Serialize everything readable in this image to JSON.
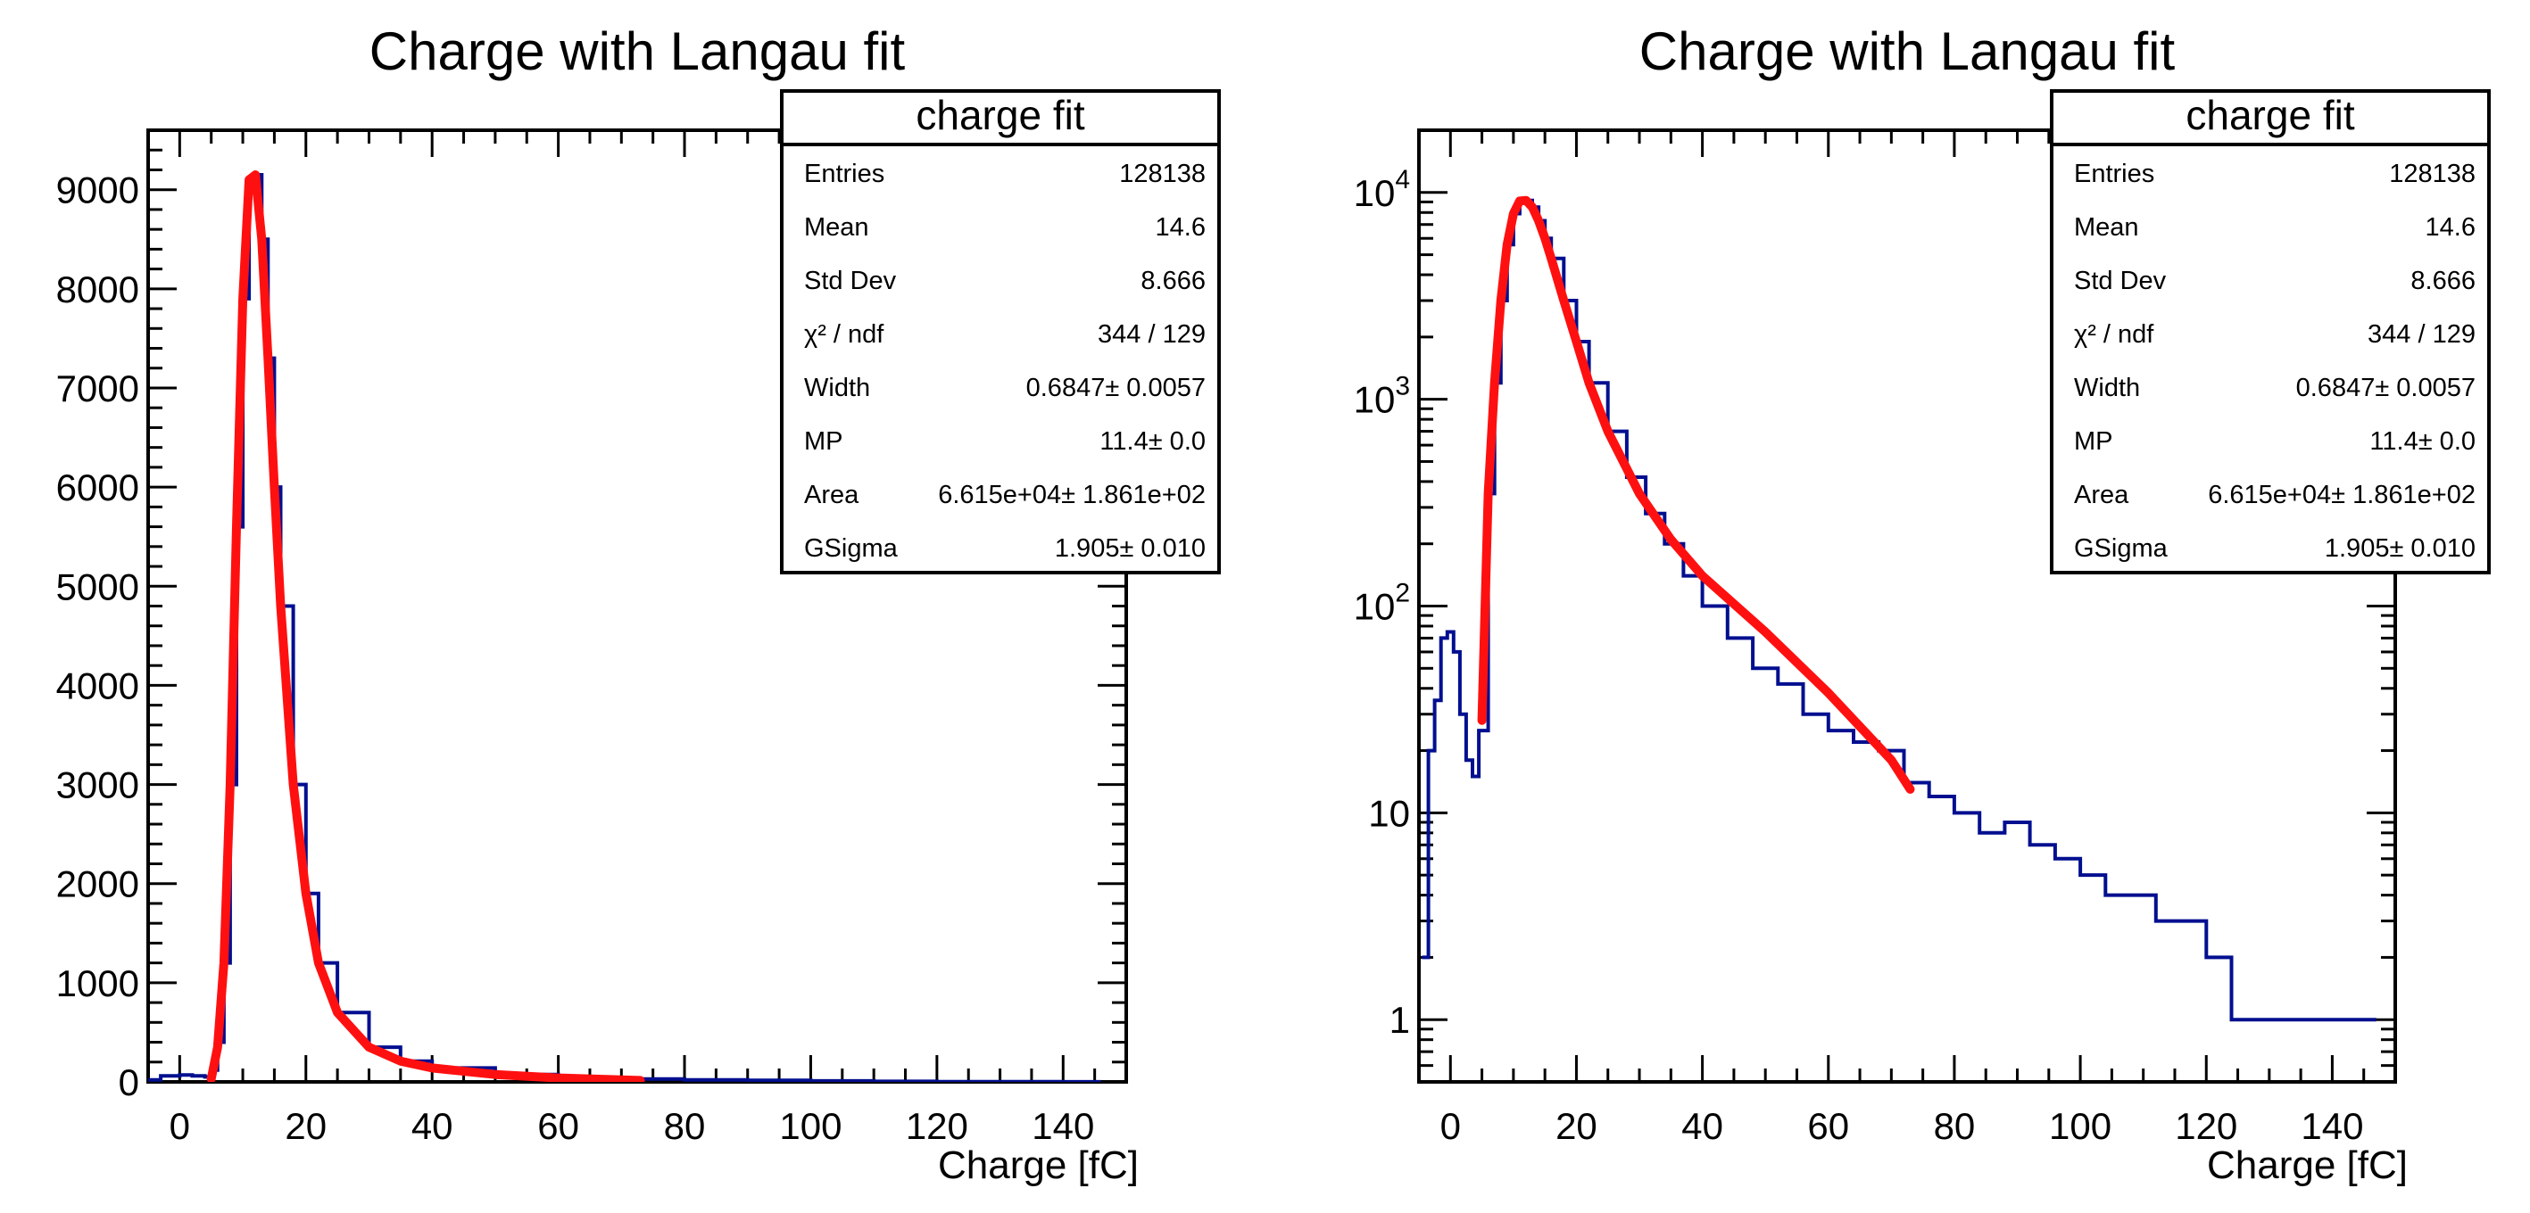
{
  "colors": {
    "histogram": "#000f8f",
    "fit": "#ff1010",
    "frame": "#000000"
  },
  "stats_box": {
    "title": "charge fit",
    "rows": [
      {
        "label": "Entries",
        "value": "128138"
      },
      {
        "label": "Mean",
        "value": "14.6"
      },
      {
        "label": "Std Dev",
        "value": "8.666"
      },
      {
        "label": "χ² / ndf",
        "value": "344 / 129"
      },
      {
        "label": "Width",
        "value": "0.6847± 0.0057"
      },
      {
        "label": "MP",
        "value": "11.4± 0.0"
      },
      {
        "label": "Area",
        "value": "6.615e+04± 1.861e+02"
      },
      {
        "label": "GSigma",
        "value": "1.905± 0.010"
      }
    ]
  },
  "chart_data": [
    {
      "type": "histogram",
      "title": "Charge with Langau fit",
      "xlabel": "Charge [fC]",
      "ylabel": "",
      "xlim": [
        -5,
        150
      ],
      "ylim": [
        0,
        9600
      ],
      "y_scale": "linear",
      "x_ticks": [
        "0",
        "20",
        "40",
        "60",
        "80",
        "100",
        "120",
        "140"
      ],
      "y_ticks": [
        "0",
        "1000",
        "2000",
        "3000",
        "4000",
        "5000",
        "6000",
        "7000",
        "8000",
        "9000"
      ],
      "legend": "top-right",
      "series": [
        {
          "name": "charge fit",
          "kind": "step",
          "x": [
            -5,
            -3,
            0,
            2,
            4,
            5,
            6,
            7,
            8,
            9,
            10,
            11,
            12,
            13,
            14,
            15,
            16,
            18,
            20,
            22,
            25,
            30,
            35,
            40,
            50,
            60,
            70,
            80,
            90,
            100,
            110,
            120,
            130,
            140,
            145
          ],
          "y": [
            20,
            60,
            70,
            60,
            50,
            120,
            400,
            1200,
            3000,
            5600,
            7900,
            9100,
            9150,
            8500,
            7300,
            6000,
            4800,
            3000,
            1900,
            1200,
            700,
            350,
            210,
            140,
            75,
            45,
            30,
            20,
            15,
            10,
            5,
            3,
            2,
            1,
            1
          ]
        },
        {
          "name": "Langau fit",
          "kind": "line",
          "x": [
            5,
            6,
            7,
            8,
            9,
            10,
            11,
            12,
            13,
            14,
            15,
            16,
            18,
            20,
            22,
            25,
            30,
            35,
            40,
            50,
            60,
            70,
            73
          ],
          "y": [
            30,
            350,
            1200,
            3000,
            5600,
            7900,
            9100,
            9150,
            8500,
            7300,
            6000,
            4800,
            3000,
            1900,
            1200,
            700,
            350,
            210,
            140,
            75,
            40,
            20,
            14
          ]
        }
      ]
    },
    {
      "type": "histogram",
      "title": "Charge with Langau fit",
      "xlabel": "Charge [fC]",
      "ylabel": "",
      "xlim": [
        -5,
        150
      ],
      "ylim": [
        0.5,
        20000
      ],
      "y_scale": "log",
      "x_ticks": [
        "0",
        "20",
        "40",
        "60",
        "80",
        "100",
        "120",
        "140"
      ],
      "y_ticks": [
        "1",
        "10",
        "10²",
        "10³",
        "10⁴"
      ],
      "legend": "top-right",
      "series": [
        {
          "name": "charge fit",
          "kind": "step",
          "x": [
            -4.5,
            -3.5,
            -2.5,
            -1.5,
            -0.5,
            0.5,
            1.5,
            2.5,
            3.5,
            4.5,
            6,
            7,
            8,
            9,
            10,
            11,
            12,
            13,
            14,
            15,
            16,
            18,
            20,
            22,
            25,
            28,
            31,
            34,
            37,
            40,
            44,
            48,
            52,
            56,
            60,
            64,
            68,
            72,
            76,
            80,
            84,
            88,
            92,
            96,
            100,
            104,
            108,
            112,
            116,
            120,
            124,
            128,
            132,
            136,
            140,
            144,
            146
          ],
          "y": [
            2,
            20,
            35,
            70,
            75,
            60,
            30,
            18,
            15,
            25,
            350,
            1200,
            3000,
            5600,
            7900,
            9100,
            9150,
            8500,
            7300,
            6000,
            4800,
            3000,
            1900,
            1200,
            700,
            420,
            280,
            200,
            140,
            100,
            70,
            50,
            42,
            30,
            25,
            22,
            20,
            14,
            12,
            10,
            8,
            9,
            7,
            6,
            5,
            4,
            4,
            3,
            3,
            2,
            1,
            1,
            1,
            1,
            1,
            1,
            1
          ]
        },
        {
          "name": "Langau fit",
          "kind": "line",
          "x": [
            5,
            6,
            7,
            8,
            9,
            10,
            11,
            12,
            13,
            14,
            15,
            16,
            18,
            20,
            22,
            25,
            30,
            35,
            40,
            50,
            60,
            70,
            73
          ],
          "y": [
            28,
            350,
            1200,
            3000,
            5600,
            7900,
            9100,
            9150,
            8500,
            7300,
            6000,
            4800,
            3000,
            1900,
            1200,
            700,
            350,
            210,
            140,
            75,
            38,
            18,
            13
          ]
        }
      ]
    }
  ]
}
